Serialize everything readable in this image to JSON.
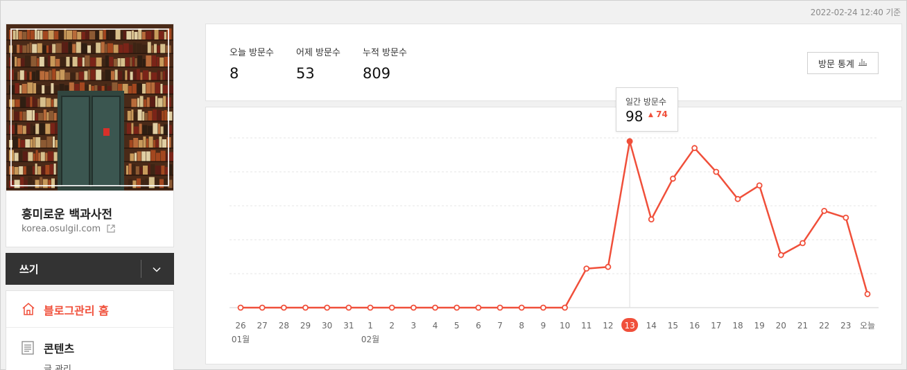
{
  "timestamp": "2022-02-24 12:40 기준",
  "profile": {
    "blog_name": "흥미로운 백과사전",
    "blog_url": "korea.osulgil.com",
    "url_icon": "external-link-icon"
  },
  "write": {
    "label": "쓰기",
    "caret_icon": "chevron-down-icon"
  },
  "menu": {
    "home": {
      "label": "블로그관리 홈",
      "icon": "home-icon"
    },
    "contents": {
      "label": "콘텐츠",
      "icon": "document-icon",
      "sub_item": "글 관리"
    }
  },
  "stats": {
    "today": {
      "label": "오늘 방문수",
      "value": "8"
    },
    "yesterday": {
      "label": "어제 방문수",
      "value": "53"
    },
    "total": {
      "label": "누적 방문수",
      "value": "809"
    },
    "button_label": "방문 통계",
    "button_icon": "bar-chart-icon"
  },
  "tooltip": {
    "label": "일간 방문수",
    "value": "98",
    "delta": "74"
  },
  "colors": {
    "accent": "#f04f3a",
    "dark_bar": "#333333"
  },
  "chart_data": {
    "type": "line",
    "categories": [
      "26",
      "27",
      "28",
      "29",
      "30",
      "31",
      "1",
      "2",
      "3",
      "4",
      "5",
      "6",
      "7",
      "8",
      "9",
      "10",
      "11",
      "12",
      "13",
      "14",
      "15",
      "16",
      "17",
      "18",
      "19",
      "20",
      "21",
      "22",
      "23",
      "오늘"
    ],
    "month_labels": [
      {
        "index": 0,
        "label": "01월"
      },
      {
        "index": 6,
        "label": "02월"
      }
    ],
    "series": [
      {
        "values": [
          0,
          0,
          0,
          0,
          0,
          0,
          0,
          0,
          0,
          0,
          0,
          0,
          0,
          0,
          0,
          0,
          23,
          24,
          98,
          52,
          76,
          94,
          80,
          64,
          72,
          31,
          38,
          57,
          53,
          8
        ]
      }
    ],
    "highlight_index": 18,
    "ylim": [
      0,
      100
    ],
    "grid": true
  }
}
